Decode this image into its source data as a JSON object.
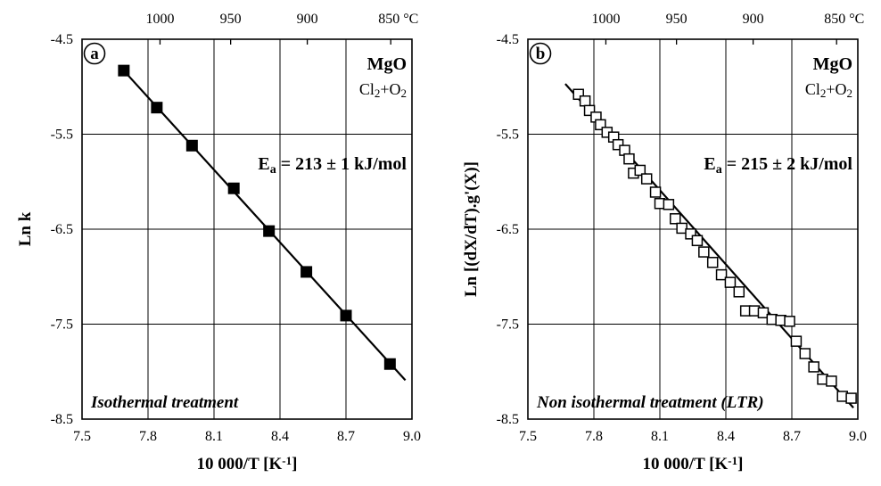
{
  "chart_data": [
    {
      "panel": "a",
      "type": "scatter",
      "compound": "MgO",
      "atmosphere": {
        "base": "Cl",
        "sub1": "2",
        "plus": "+O",
        "sub2": "2"
      },
      "energy_label": {
        "main": "E",
        "sub": "a",
        "rest": " = 213 ± 1 kJ/mol"
      },
      "treatment": "Isothermal treatment",
      "ylabel": "Ln k",
      "xlabel": {
        "main": "10 000/T [K",
        "sup": "-1",
        "end": "]"
      },
      "xlim": [
        7.5,
        9.0
      ],
      "ylim": [
        -8.5,
        -4.5
      ],
      "xticks": [
        "7.5",
        "7.8",
        "8.1",
        "8.4",
        "8.7",
        "9.0"
      ],
      "yticks": [
        "-4.5",
        "-5.5",
        "-6.5",
        "-7.5",
        "-8.5"
      ],
      "top_ticks": [
        "1000",
        "950",
        "900",
        "850 °C"
      ],
      "top_temps_c": [
        1000,
        950,
        900,
        850
      ],
      "grid": true,
      "marker": "filled-square",
      "points": [
        {
          "x": 7.69,
          "y": -4.83
        },
        {
          "x": 7.84,
          "y": -5.22
        },
        {
          "x": 8.0,
          "y": -5.62
        },
        {
          "x": 8.19,
          "y": -6.07
        },
        {
          "x": 8.35,
          "y": -6.52
        },
        {
          "x": 8.52,
          "y": -6.95
        },
        {
          "x": 8.7,
          "y": -7.41
        },
        {
          "x": 8.9,
          "y": -7.92
        }
      ],
      "fit": {
        "x": [
          7.67,
          8.97
        ],
        "y": [
          -4.78,
          -8.09
        ]
      }
    },
    {
      "panel": "b",
      "type": "scatter",
      "compound": "MgO",
      "atmosphere": {
        "base": "Cl",
        "sub1": "2",
        "plus": "+O",
        "sub2": "2"
      },
      "energy_label": {
        "main": "E",
        "sub": "a",
        "rest": " = 215 ± 2 kJ/mol"
      },
      "treatment": "Non isothermal treatment (LTR)",
      "ylabel": "Ln [(dX/dT).g'(X)]",
      "xlabel": {
        "main": "10 000/T [K",
        "sup": "-1",
        "end": "]"
      },
      "xlim": [
        7.5,
        9.0
      ],
      "ylim": [
        -8.5,
        -4.5
      ],
      "xticks": [
        "7.5",
        "7.8",
        "8.1",
        "8.4",
        "8.7",
        "9.0"
      ],
      "yticks": [
        "-4.5",
        "-5.5",
        "-6.5",
        "-7.5",
        "-8.5"
      ],
      "top_ticks": [
        "1000",
        "950",
        "900",
        "850 °C"
      ],
      "top_temps_c": [
        1000,
        950,
        900,
        850
      ],
      "grid": true,
      "marker": "open-square",
      "points": [
        {
          "x": 7.73,
          "y": -5.08
        },
        {
          "x": 7.76,
          "y": -5.15
        },
        {
          "x": 7.78,
          "y": -5.25
        },
        {
          "x": 7.81,
          "y": -5.32
        },
        {
          "x": 7.83,
          "y": -5.4
        },
        {
          "x": 7.86,
          "y": -5.48
        },
        {
          "x": 7.89,
          "y": -5.53
        },
        {
          "x": 7.91,
          "y": -5.61
        },
        {
          "x": 7.94,
          "y": -5.67
        },
        {
          "x": 7.96,
          "y": -5.76
        },
        {
          "x": 7.98,
          "y": -5.91
        },
        {
          "x": 8.01,
          "y": -5.88
        },
        {
          "x": 8.04,
          "y": -5.97
        },
        {
          "x": 8.08,
          "y": -6.11
        },
        {
          "x": 8.1,
          "y": -6.23
        },
        {
          "x": 8.14,
          "y": -6.24
        },
        {
          "x": 8.17,
          "y": -6.39
        },
        {
          "x": 8.2,
          "y": -6.49
        },
        {
          "x": 8.24,
          "y": -6.55
        },
        {
          "x": 8.27,
          "y": -6.62
        },
        {
          "x": 8.3,
          "y": -6.74
        },
        {
          "x": 8.34,
          "y": -6.85
        },
        {
          "x": 8.38,
          "y": -6.98
        },
        {
          "x": 8.42,
          "y": -7.06
        },
        {
          "x": 8.46,
          "y": -7.16
        },
        {
          "x": 8.49,
          "y": -7.36
        },
        {
          "x": 8.53,
          "y": -7.36
        },
        {
          "x": 8.57,
          "y": -7.38
        },
        {
          "x": 8.61,
          "y": -7.45
        },
        {
          "x": 8.65,
          "y": -7.46
        },
        {
          "x": 8.69,
          "y": -7.47
        },
        {
          "x": 8.72,
          "y": -7.68
        },
        {
          "x": 8.76,
          "y": -7.81
        },
        {
          "x": 8.8,
          "y": -7.95
        },
        {
          "x": 8.84,
          "y": -8.08
        },
        {
          "x": 8.88,
          "y": -8.1
        },
        {
          "x": 8.93,
          "y": -8.26
        },
        {
          "x": 8.97,
          "y": -8.28
        }
      ],
      "fit": {
        "x": [
          7.67,
          8.98
        ],
        "y": [
          -4.97,
          -8.38
        ]
      }
    }
  ]
}
